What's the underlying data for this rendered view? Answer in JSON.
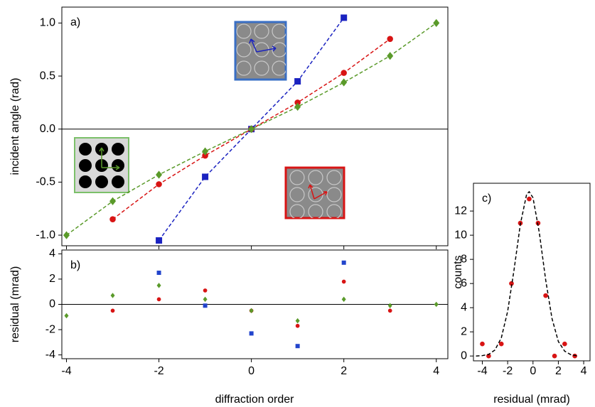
{
  "chart_data": [
    {
      "type": "line",
      "annotation": "a)",
      "ylabel": "incident angle (rad)",
      "xlim": [
        -4.1,
        4.25
      ],
      "ylim": [
        -1.1,
        1.15
      ],
      "xticks": [
        -4,
        -2,
        0,
        2,
        4
      ],
      "xtick_labels": false,
      "yticks": [
        {
          "value": 1,
          "label": "1.0"
        },
        0.5,
        {
          "value": 0,
          "label": "0.0"
        },
        -0.5,
        {
          "value": -1,
          "label": "-1.0"
        }
      ],
      "zero_line": true,
      "series": [
        {
          "color": "#1a22c0",
          "marker": "square",
          "line_style": "dashed",
          "x": [
            -2,
            -1,
            0,
            1,
            2
          ],
          "values": [
            -1.05,
            -0.45,
            0,
            0.45,
            1.05
          ]
        },
        {
          "color": "#d81414",
          "marker": "circle",
          "line_style": "dashed",
          "x": [
            -3,
            -2,
            -1,
            0,
            1,
            2,
            3
          ],
          "values": [
            -0.85,
            -0.52,
            -0.25,
            0,
            0.25,
            0.53,
            0.85
          ]
        },
        {
          "color": "#5a9a2a",
          "marker": "diamond",
          "line_style": "dashed",
          "x": [
            -4,
            -3,
            -2,
            -1,
            0,
            1,
            2,
            3,
            4
          ],
          "values": [
            -1.0,
            -0.68,
            -0.43,
            -0.21,
            0,
            0.21,
            0.44,
            0.69,
            1.0
          ]
        }
      ]
    },
    {
      "type": "scatter",
      "annotation": "b)",
      "ylabel": "residual (mrad)",
      "xlabel": "diffraction order",
      "xlim": [
        -4.1,
        4.25
      ],
      "ylim": [
        -4.3,
        4.3
      ],
      "xticks": [
        -4,
        -2,
        0,
        2,
        4
      ],
      "yticks": [
        -4,
        -2,
        0,
        2,
        4
      ],
      "zero_line": true,
      "series": [
        {
          "color": "#2244cc",
          "marker": "square",
          "x": [
            -2,
            -1,
            0,
            1,
            2
          ],
          "values": [
            2.5,
            -0.1,
            -2.3,
            -3.3,
            3.3
          ]
        },
        {
          "color": "#d81414",
          "marker": "circle",
          "x": [
            -3,
            -2,
            -1,
            0,
            1,
            2,
            3
          ],
          "values": [
            -0.5,
            0.4,
            1.1,
            -0.5,
            -1.7,
            1.8,
            -0.5
          ]
        },
        {
          "color": "#5a9a2a",
          "marker": "diamond",
          "x": [
            -4,
            -3,
            -2,
            -1,
            0,
            1,
            2,
            3,
            4
          ],
          "values": [
            -0.9,
            0.7,
            1.5,
            0.4,
            -0.5,
            -1.3,
            0.4,
            -0.1,
            0
          ]
        }
      ]
    },
    {
      "type": "scatter",
      "annotation": "c)",
      "ylabel": "counts",
      "xlabel": "residual (mrad)",
      "xlim": [
        -4.7,
        4.5
      ],
      "ylim": [
        -0.4,
        14.3
      ],
      "xticks": [
        -4,
        -2,
        0,
        2,
        4
      ],
      "yticks": [
        0,
        2,
        4,
        6,
        8,
        10,
        12
      ],
      "zero_line": false,
      "series": [
        {
          "color": "#d81414",
          "marker": "circle",
          "x": [
            -4,
            -3.5,
            -2.5,
            -1.7,
            -1,
            -0.3,
            0.4,
            1,
            1.7,
            2.5,
            3.3
          ],
          "values": [
            1,
            0,
            1,
            6,
            11,
            13,
            11,
            5,
            0,
            1,
            0
          ]
        },
        {
          "color": "#000000",
          "line_style": "dashed",
          "x": [
            -4.5,
            -4,
            -3.5,
            -3,
            -2.5,
            -2,
            -1.5,
            -1,
            -0.5,
            -0.3,
            0,
            0.5,
            1,
            1.5,
            2,
            2.5,
            3,
            3.5
          ],
          "values": [
            0,
            0.03,
            0.13,
            0.5,
            1.5,
            3.7,
            7.1,
            10.9,
            13.4,
            13.6,
            13.1,
            10.2,
            6.3,
            3.1,
            1.2,
            0.4,
            0.1,
            0.02
          ]
        }
      ]
    }
  ]
}
